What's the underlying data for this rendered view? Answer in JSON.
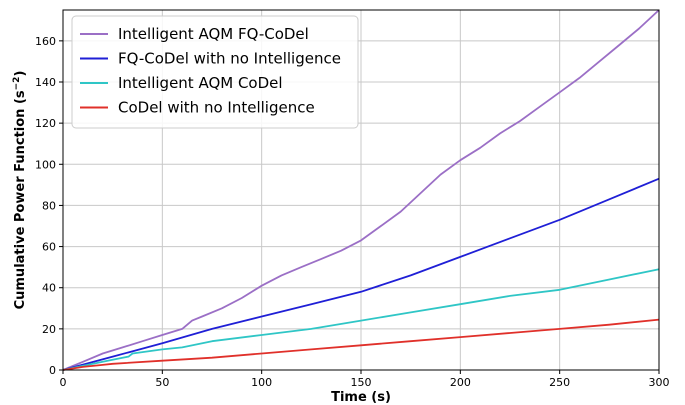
{
  "chart_data": {
    "type": "line",
    "title": "",
    "xlabel": "Time (s)",
    "ylabel": "Cumulative Power Function (s",
    "ylabel_sup": "−2",
    "ylabel_close": ")",
    "xlim": [
      0,
      300
    ],
    "ylim": [
      0,
      175
    ],
    "xticks": [
      0,
      50,
      100,
      150,
      200,
      250,
      300
    ],
    "yticks": [
      0,
      20,
      40,
      60,
      80,
      100,
      120,
      140,
      160
    ],
    "grid": true,
    "legend_position": "upper-left",
    "series": [
      {
        "name": "Intelligent AQM FQ-CoDel",
        "color": "#9b6fc6",
        "x": [
          0,
          10,
          20,
          30,
          40,
          50,
          60,
          65,
          70,
          80,
          90,
          100,
          110,
          120,
          130,
          140,
          150,
          160,
          170,
          180,
          190,
          200,
          210,
          220,
          230,
          240,
          250,
          260,
          270,
          280,
          290,
          300
        ],
        "y": [
          0,
          4,
          8,
          11,
          14,
          17,
          20,
          24,
          26,
          30,
          35,
          41,
          46,
          50,
          54,
          58,
          63,
          70,
          77,
          86,
          95,
          102,
          108,
          115,
          121,
          128,
          135,
          142,
          150,
          158,
          166,
          175
        ]
      },
      {
        "name": "FQ-CoDel with no Intelligence",
        "color": "#1f1fd6",
        "x": [
          0,
          25,
          50,
          75,
          100,
          125,
          150,
          175,
          200,
          225,
          250,
          275,
          300
        ],
        "y": [
          0,
          6.5,
          13,
          20,
          26,
          32,
          38,
          46,
          55,
          64,
          73,
          83,
          93
        ]
      },
      {
        "name": "Intelligent AQM CoDel",
        "color": "#2fc6c6",
        "x": [
          0,
          10,
          20,
          30,
          33,
          35,
          50,
          60,
          75,
          100,
          125,
          150,
          175,
          200,
          225,
          250,
          275,
          300
        ],
        "y": [
          0,
          2,
          4,
          6,
          6.5,
          8,
          10,
          11,
          14,
          17,
          20,
          24,
          28,
          32,
          36,
          39,
          44,
          49
        ]
      },
      {
        "name": "CoDel with no Intelligence",
        "color": "#e0302a",
        "x": [
          0,
          10,
          20,
          25,
          50,
          75,
          100,
          125,
          150,
          175,
          200,
          225,
          250,
          275,
          300
        ],
        "y": [
          0,
          1.5,
          2.5,
          3,
          4.5,
          6,
          8,
          10,
          12,
          14,
          16,
          18,
          20,
          22,
          24.5
        ]
      }
    ]
  }
}
